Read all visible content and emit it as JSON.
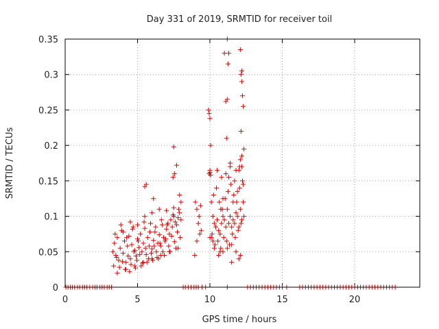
{
  "chart_data": {
    "type": "scatter",
    "title": "Day 331 of 2019, SRMTID for receiver toil",
    "xlabel": "GPS time / hours",
    "ylabel": "SRMTID / TECUs",
    "xlim": [
      0,
      24.5
    ],
    "ylim": [
      0,
      0.35
    ],
    "xticks": [
      0,
      5,
      10,
      15,
      20
    ],
    "xtick_labels": [
      "0",
      "5",
      "10",
      "15",
      "20"
    ],
    "yticks": [
      0,
      0.05,
      0.1,
      0.15,
      0.2,
      0.25,
      0.3,
      0.35
    ],
    "ytick_labels": [
      "0",
      "0.05",
      "0.1",
      "0.15",
      "0.2",
      "0.25",
      "0.3",
      "0.35"
    ],
    "grid": true,
    "legend": "none",
    "marker": "plus",
    "color": "#e00000",
    "series": [
      {
        "x": [
          0.05,
          0.2,
          0.35,
          0.5,
          0.65,
          0.85,
          1.0,
          1.2,
          1.35,
          1.5,
          1.7,
          1.9,
          2.05,
          2.2,
          2.4,
          2.55,
          2.7,
          2.9,
          3.05,
          3.2,
          8.15,
          8.3,
          8.5,
          8.7,
          8.9,
          9.05,
          9.2,
          9.45,
          9.7,
          11.2,
          12.6,
          12.8,
          13.0,
          13.2,
          13.4,
          13.6,
          13.8,
          14.0,
          14.2,
          14.4,
          14.6,
          14.8,
          15.0,
          15.3,
          16.2,
          16.4,
          16.6,
          16.8,
          17.0,
          17.2,
          17.4,
          17.6,
          17.8,
          18.0,
          18.2,
          18.4,
          18.6,
          18.8,
          19.0,
          19.2,
          19.4,
          19.6,
          19.8,
          20.0,
          20.2,
          20.4,
          20.6,
          20.8,
          21.0,
          21.2,
          21.4,
          21.6,
          21.8,
          22.0,
          22.2,
          22.4,
          22.6,
          22.8,
          3.3,
          3.4,
          3.5,
          3.6,
          3.7,
          3.8,
          3.9,
          4.0,
          4.1,
          4.2,
          4.3,
          4.4,
          4.5,
          4.6,
          4.7,
          4.8,
          4.9,
          5.0,
          5.1,
          5.2,
          5.3,
          5.4,
          5.5,
          5.6,
          5.7,
          5.8,
          5.9,
          6.0,
          6.1,
          6.2,
          6.3,
          6.4,
          6.5,
          6.6,
          6.7,
          6.8,
          6.9,
          7.0,
          7.1,
          7.2,
          7.3,
          7.4,
          7.5,
          7.6,
          7.7,
          7.8,
          7.9,
          8.0,
          3.35,
          3.55,
          3.75,
          3.95,
          4.15,
          4.35,
          4.55,
          4.75,
          4.95,
          5.15,
          5.35,
          5.55,
          5.75,
          5.95,
          6.15,
          6.35,
          6.55,
          6.75,
          6.95,
          7.15,
          7.35,
          7.55,
          7.75,
          7.95,
          3.45,
          3.85,
          4.25,
          4.65,
          5.05,
          5.45,
          5.85,
          6.25,
          6.65,
          7.05,
          7.45,
          7.85,
          4.45,
          4.85,
          5.25,
          5.65,
          6.05,
          6.45,
          6.85,
          7.25,
          7.65,
          4.0,
          4.5,
          5.0,
          5.5,
          6.0,
          6.5,
          7.0,
          7.5,
          3.6,
          4.2,
          4.8,
          5.4,
          6.0,
          6.6,
          7.2,
          7.8,
          5.5,
          5.6,
          6.1,
          7.45,
          7.5,
          7.7,
          7.55,
          7.9,
          8.0,
          9.0,
          9.1,
          9.2,
          9.3,
          9.4,
          9.1,
          9.25,
          9.35,
          8.95,
          9.9,
          9.95,
          10.0,
          10.05,
          9.95,
          10.1,
          10.2,
          10.3,
          10.4,
          10.5,
          10.6,
          10.7,
          10.8,
          10.9,
          11.0,
          11.1,
          11.2,
          11.3,
          11.4,
          11.5,
          11.6,
          11.7,
          11.8,
          11.9,
          12.0,
          12.1,
          12.2,
          12.3,
          10.0,
          10.15,
          10.35,
          10.55,
          10.75,
          10.95,
          11.15,
          11.35,
          11.55,
          11.75,
          11.95,
          12.15,
          12.35,
          10.25,
          10.45,
          10.65,
          10.85,
          11.05,
          11.25,
          11.45,
          11.65,
          11.85,
          12.05,
          12.25,
          10.5,
          10.8,
          11.1,
          11.4,
          11.7,
          12.0,
          12.2,
          10.6,
          10.9,
          11.2,
          11.5,
          11.8,
          12.1,
          9.95,
          10.0,
          10.05,
          10.0,
          11.2,
          11.25,
          11.3,
          11.15,
          11.2,
          11.1,
          11.0,
          12.1,
          12.15,
          12.2,
          12.25,
          12.3,
          12.2,
          12.15,
          12.1,
          12.05,
          12.2,
          12.3,
          12.35,
          11.8,
          11.4,
          10.75,
          10.9,
          11.3,
          11.6,
          11.9,
          12.0,
          11.5,
          10.7,
          10.3,
          10.2,
          10.1
        ],
        "y": [
          0,
          0,
          0,
          0,
          0,
          0,
          0,
          0,
          0,
          0,
          0,
          0,
          0,
          0,
          0,
          0,
          0,
          0,
          0,
          0,
          0,
          0,
          0,
          0,
          0,
          0,
          0,
          0,
          0,
          0,
          0,
          0,
          0,
          0,
          0,
          0,
          0,
          0,
          0,
          0,
          0,
          0,
          0,
          0,
          0,
          0,
          0,
          0,
          0,
          0,
          0,
          0,
          0,
          0,
          0,
          0,
          0,
          0,
          0,
          0,
          0,
          0,
          0,
          0,
          0,
          0,
          0,
          0,
          0,
          0,
          0,
          0,
          0,
          0,
          0,
          0,
          0,
          0,
          0.05,
          0.062,
          0.045,
          0.07,
          0.038,
          0.055,
          0.08,
          0.048,
          0.065,
          0.035,
          0.058,
          0.072,
          0.04,
          0.06,
          0.085,
          0.052,
          0.044,
          0.068,
          0.056,
          0.075,
          0.05,
          0.062,
          0.083,
          0.046,
          0.07,
          0.058,
          0.09,
          0.054,
          0.066,
          0.078,
          0.05,
          0.062,
          0.074,
          0.058,
          0.088,
          0.07,
          0.065,
          0.082,
          0.09,
          0.075,
          0.095,
          0.085,
          0.1,
          0.092,
          0.088,
          0.098,
          0.105,
          0.095,
          0.03,
          0.042,
          0.028,
          0.036,
          0.025,
          0.044,
          0.032,
          0.05,
          0.038,
          0.046,
          0.034,
          0.055,
          0.04,
          0.048,
          0.058,
          0.042,
          0.062,
          0.05,
          0.068,
          0.058,
          0.072,
          0.064,
          0.078,
          0.07,
          0.075,
          0.088,
          0.07,
          0.082,
          0.065,
          0.092,
          0.078,
          0.085,
          0.095,
          0.088,
          0.102,
          0.11,
          0.022,
          0.027,
          0.03,
          0.035,
          0.038,
          0.04,
          0.045,
          0.05,
          0.055,
          0.078,
          0.092,
          0.088,
          0.1,
          0.105,
          0.11,
          0.108,
          0.112,
          0.02,
          0.025,
          0.03,
          0.035,
          0.04,
          0.045,
          0.05,
          0.055,
          0.142,
          0.145,
          0.125,
          0.155,
          0.198,
          0.172,
          0.16,
          0.13,
          0.12,
          0.12,
          0.11,
          0.09,
          0.075,
          0.08,
          0.065,
          0.1,
          0.115,
          0.045,
          0.25,
          0.245,
          0.238,
          0.2,
          0.16,
          0.12,
          0.1,
          0.09,
          0.085,
          0.095,
          0.08,
          0.075,
          0.09,
          0.1,
          0.095,
          0.085,
          0.11,
          0.09,
          0.1,
          0.085,
          0.095,
          0.09,
          0.105,
          0.1,
          0.085,
          0.11,
          0.095,
          0.12,
          0.07,
          0.075,
          0.06,
          0.065,
          0.055,
          0.07,
          0.065,
          0.06,
          0.075,
          0.07,
          0.08,
          0.09,
          0.1,
          0.13,
          0.14,
          0.12,
          0.11,
          0.125,
          0.135,
          0.145,
          0.13,
          0.12,
          0.14,
          0.15,
          0.165,
          0.155,
          0.16,
          0.175,
          0.15,
          0.165,
          0.17,
          0.045,
          0.05,
          0.055,
          0.06,
          0.05,
          0.045,
          0.16,
          0.162,
          0.158,
          0.165,
          0.265,
          0.315,
          0.33,
          0.21,
          0.35,
          0.262,
          0.33,
          0.335,
          0.3,
          0.29,
          0.27,
          0.255,
          0.305,
          0.22,
          0.18,
          0.17,
          0.185,
          0.145,
          0.195,
          0.165,
          0.17,
          0.11,
          0.125,
          0.155,
          0.12,
          0.135,
          0.04,
          0.035,
          0.05,
          0.055,
          0.065,
          0.07
        ]
      }
    ]
  }
}
